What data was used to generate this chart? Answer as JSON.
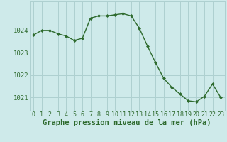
{
  "hours": [
    0,
    1,
    2,
    3,
    4,
    5,
    6,
    7,
    8,
    9,
    10,
    11,
    12,
    13,
    14,
    15,
    16,
    17,
    18,
    19,
    20,
    21,
    22,
    23
  ],
  "pressure": [
    1023.8,
    1024.0,
    1024.0,
    1023.85,
    1023.75,
    1023.55,
    1023.65,
    1024.55,
    1024.65,
    1024.65,
    1024.7,
    1024.75,
    1024.65,
    1024.1,
    1023.3,
    1022.55,
    1021.85,
    1021.45,
    1021.15,
    1020.85,
    1020.8,
    1021.05,
    1021.6,
    1021.0
  ],
  "line_color": "#2d6a2d",
  "marker": "D",
  "marker_size": 2.0,
  "line_width": 1.0,
  "bg_color": "#ceeaea",
  "grid_color": "#aed0d0",
  "xlabel": "Graphe pression niveau de la mer (hPa)",
  "xlabel_fontsize": 7.5,
  "ylabel_fontsize": 6.5,
  "tick_fontsize": 6.0,
  "ylim": [
    1020.4,
    1025.3
  ],
  "yticks": [
    1021,
    1022,
    1023,
    1024
  ],
  "xticks": [
    0,
    1,
    2,
    3,
    4,
    5,
    6,
    7,
    8,
    9,
    10,
    11,
    12,
    13,
    14,
    15,
    16,
    17,
    18,
    19,
    20,
    21,
    22,
    23
  ]
}
